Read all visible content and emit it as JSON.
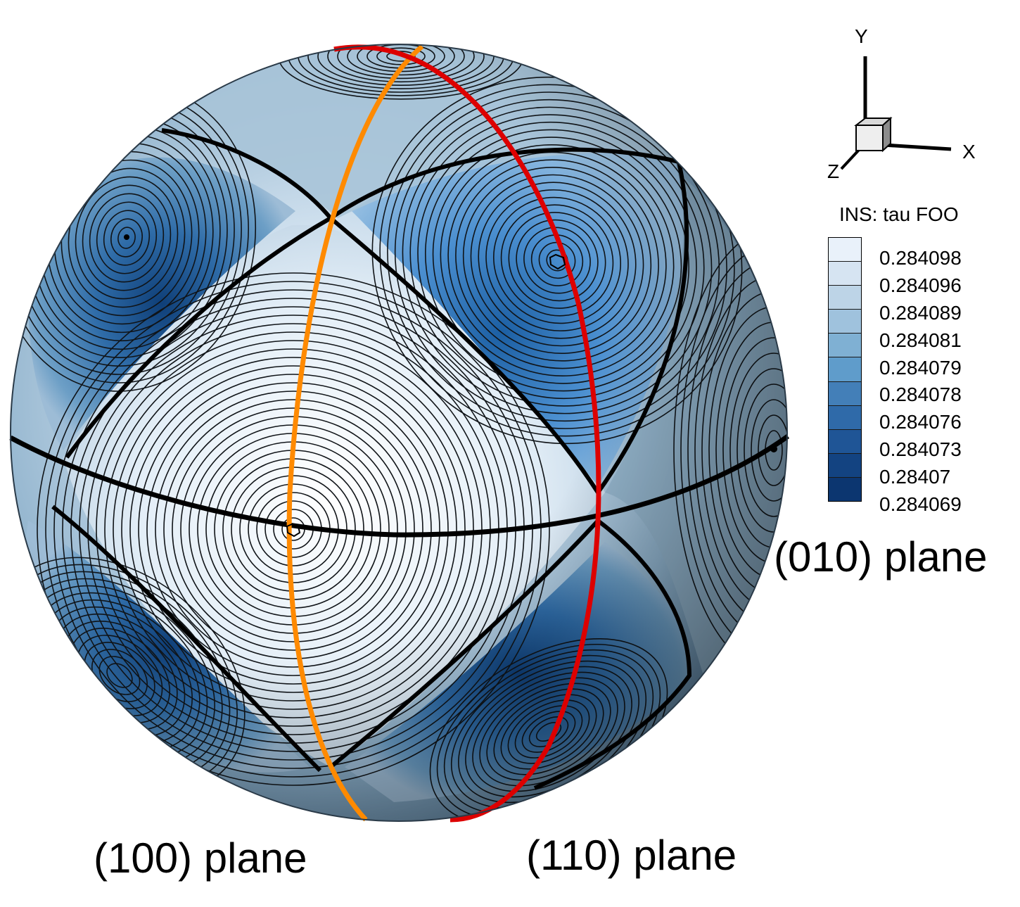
{
  "axes_triad": {
    "y_label": "Y",
    "x_label": "X",
    "z_label": "Z"
  },
  "legend": {
    "title": "INS: tau FOO",
    "levels": [
      "0.284098",
      "0.284096",
      "0.284089",
      "0.284081",
      "0.284079",
      "0.284078",
      "0.284076",
      "0.284073",
      "0.28407",
      "0.284069"
    ],
    "colors": [
      "#e9f1fa",
      "#d6e4f2",
      "#bdd4e7",
      "#9fc2dd",
      "#7fb0d3",
      "#5f9ccb",
      "#437fb8",
      "#2f6aa9",
      "#1f5596",
      "#134381",
      "#0c3670"
    ]
  },
  "labels": {
    "plane_100": "(100) plane",
    "plane_110": "(110) plane",
    "plane_010": "(010) plane"
  },
  "colors": {
    "plane_100_line": "#ff8a00",
    "plane_110_line": "#dd0000",
    "equator_line": "#000000"
  }
}
